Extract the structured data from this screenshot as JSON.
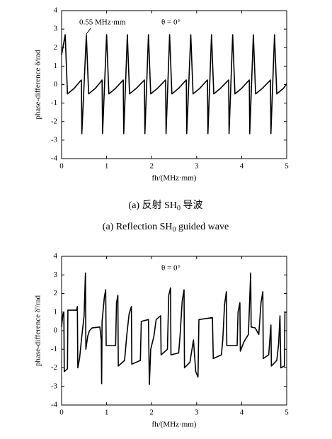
{
  "chart_data": [
    {
      "type": "line",
      "ylabel": "phase-difference δ/rad",
      "xlabel": "fh/(MHz·mm)",
      "annotations": [
        "0.55 MHz·mm",
        "θ = 0°"
      ],
      "color": "#000000",
      "xlim": [
        0,
        5
      ],
      "ylim": [
        -4,
        4
      ],
      "xticks": [
        0,
        1,
        2,
        3,
        4,
        5
      ],
      "yticks": [
        -4,
        -3,
        -2,
        -1,
        0,
        1,
        2,
        3,
        4
      ],
      "x": [
        0,
        0.08,
        0.13,
        0.28,
        0.4,
        0.44,
        0.45,
        0.55,
        0.6,
        0.75,
        0.87,
        0.9,
        0.91,
        1.0,
        1.05,
        1.2,
        1.33,
        1.37,
        1.38,
        1.46,
        1.51,
        1.66,
        1.8,
        1.84,
        1.85,
        1.93,
        1.98,
        2.13,
        2.27,
        2.31,
        2.32,
        2.4,
        2.45,
        2.6,
        2.73,
        2.77,
        2.78,
        2.87,
        2.92,
        3.07,
        3.2,
        3.24,
        3.25,
        3.33,
        3.38,
        3.53,
        3.67,
        3.71,
        3.72,
        3.8,
        3.85,
        4.0,
        4.13,
        4.17,
        4.18,
        4.26,
        4.31,
        4.46,
        4.6,
        4.64,
        4.65,
        4.73,
        4.78,
        4.93,
        5.0
      ],
      "values": [
        1.6,
        2.7,
        -0.5,
        -0.2,
        0.15,
        0.25,
        -2.65,
        2.7,
        -0.5,
        -0.2,
        0.15,
        0.25,
        -2.65,
        2.7,
        -0.5,
        -0.2,
        0.15,
        0.25,
        -2.65,
        2.7,
        -0.5,
        -0.2,
        0.15,
        0.25,
        -2.65,
        2.7,
        -0.5,
        -0.2,
        0.15,
        0.25,
        -2.65,
        2.7,
        -0.5,
        -0.2,
        0.15,
        0.25,
        -2.65,
        2.7,
        -0.5,
        -0.2,
        0.15,
        0.25,
        -2.65,
        2.7,
        -0.5,
        -0.2,
        0.15,
        0.25,
        -2.65,
        2.7,
        -0.5,
        -0.2,
        0.15,
        0.25,
        -2.65,
        2.7,
        -0.5,
        -0.2,
        0.15,
        0.25,
        -2.65,
        2.7,
        -0.5,
        -0.2,
        0.05
      ]
    },
    {
      "type": "line",
      "ylabel": "phase-difference δ'/rad",
      "xlabel": "fh/(MHz·mm)",
      "annotations": [
        "θ = 0°"
      ],
      "color": "#000000",
      "xlim": [
        0,
        5
      ],
      "ylim": [
        -4,
        4
      ],
      "xticks": [
        0,
        1,
        2,
        3,
        4,
        5
      ],
      "yticks": [
        -4,
        -3,
        -2,
        -1,
        0,
        1,
        2,
        3,
        4
      ],
      "x": [
        0,
        0.03,
        0.05,
        0.06,
        0.13,
        0.14,
        0.33,
        0.35,
        0.36,
        0.4,
        0.44,
        0.5,
        0.53,
        0.54,
        0.58,
        0.62,
        0.68,
        0.85,
        0.88,
        0.89,
        0.9,
        0.95,
        0.98,
        0.99,
        1.2,
        1.22,
        1.25,
        1.26,
        1.4,
        1.45,
        1.5,
        1.55,
        1.56,
        1.75,
        1.77,
        1.93,
        1.95,
        1.98,
        2.05,
        2.1,
        2.2,
        2.21,
        2.35,
        2.38,
        2.42,
        2.43,
        2.6,
        2.63,
        2.68,
        2.72,
        2.73,
        2.85,
        2.93,
        2.98,
        3.03,
        3.05,
        3.35,
        3.37,
        3.55,
        3.58,
        3.62,
        3.66,
        3.67,
        3.9,
        3.92,
        3.96,
        3.97,
        4.05,
        4.15,
        4.2,
        4.21,
        4.3,
        4.38,
        4.43,
        4.47,
        4.48,
        4.6,
        4.63,
        4.65,
        4.66,
        4.78,
        4.82,
        4.85,
        4.87,
        4.95,
        4.96,
        5.0
      ],
      "values": [
        0.2,
        0.9,
        1.0,
        -2.2,
        -2.05,
        1.1,
        1.1,
        1.3,
        -2.0,
        -1.5,
        -0.5,
        0.8,
        3.1,
        -1.0,
        -0.3,
        0.0,
        0.15,
        0.2,
        -0.5,
        -2.85,
        0.5,
        1.8,
        2.2,
        -0.8,
        -0.8,
        1.5,
        1.9,
        -1.9,
        -1.6,
        -0.2,
        0.9,
        1.3,
        -1.8,
        -1.6,
        0.5,
        0.6,
        -2.9,
        -1.0,
        -0.3,
        0.6,
        0.8,
        -1.3,
        -1.0,
        1.9,
        2.3,
        -1.3,
        -1.2,
        -0.3,
        1.6,
        2.2,
        -2.0,
        -1.7,
        -0.5,
        -2.2,
        -2.5,
        0.6,
        0.7,
        -1.5,
        -1.3,
        -0.5,
        1.4,
        2.1,
        -0.8,
        -0.8,
        1.0,
        1.5,
        -1.1,
        -0.6,
        -0.2,
        3.1,
        0.2,
        0.15,
        -0.2,
        1.5,
        2.1,
        -1.5,
        -1.3,
        -0.3,
        0.3,
        -1.9,
        -1.6,
        -0.7,
        0.8,
        -2.0,
        -1.9,
        1.0,
        1.0
      ]
    }
  ],
  "caption_cn": {
    "prefix": "(a) 反射 SH",
    "subscript": "0",
    "suffix": " 导波"
  },
  "caption_en": {
    "prefix": "(a) Reflection SH",
    "subscript": "0",
    "suffix": " guided wave"
  }
}
